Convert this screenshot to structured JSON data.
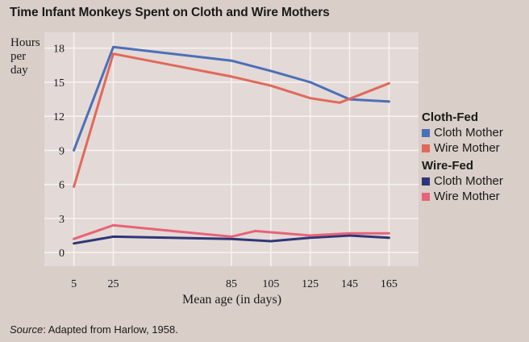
{
  "chart_data": {
    "type": "line",
    "title": "Time Infant Monkeys Spent on Cloth and Wire Mothers",
    "ylabel": "Hours per day",
    "xlabel": "Mean age (in days)",
    "x": [
      5,
      25,
      85,
      105,
      125,
      145,
      165
    ],
    "xticks": [
      "5",
      "25",
      "85",
      "105",
      "125",
      "145",
      "165"
    ],
    "yticks": [
      "0",
      "3",
      "6",
      "9",
      "12",
      "15",
      "18"
    ],
    "xlim": [
      -10,
      180
    ],
    "ylim": [
      -1.2,
      19.4
    ],
    "grid": true,
    "legend_position": "right",
    "groups": [
      {
        "name": "Cloth-Fed",
        "series": [
          {
            "name": "Cloth Mother",
            "color": "#4d6fb8",
            "x": [
              5,
              25,
              85,
              105,
              125,
              145,
              165
            ],
            "values": [
              9.0,
              18.1,
              16.9,
              16.0,
              15.0,
              13.5,
              13.3
            ]
          },
          {
            "name": "Wire Mother",
            "color": "#e0695a",
            "x": [
              5,
              25,
              85,
              105,
              125,
              140,
              165
            ],
            "values": [
              5.8,
              17.5,
              15.5,
              14.7,
              13.6,
              13.2,
              14.9
            ]
          }
        ]
      },
      {
        "name": "Wire-Fed",
        "series": [
          {
            "name": "Cloth Mother",
            "color": "#2f3677",
            "x": [
              5,
              25,
              85,
              105,
              125,
              145,
              165
            ],
            "values": [
              0.8,
              1.4,
              1.2,
              1.0,
              1.3,
              1.5,
              1.3
            ]
          },
          {
            "name": "Wire Mother",
            "color": "#e66478",
            "x": [
              5,
              25,
              85,
              97,
              125,
              145,
              165
            ],
            "values": [
              1.2,
              2.4,
              1.4,
              1.9,
              1.5,
              1.7,
              1.7
            ]
          }
        ]
      }
    ]
  },
  "source": {
    "label": "Source",
    "text": ": Adapted from Harlow, 1958."
  }
}
